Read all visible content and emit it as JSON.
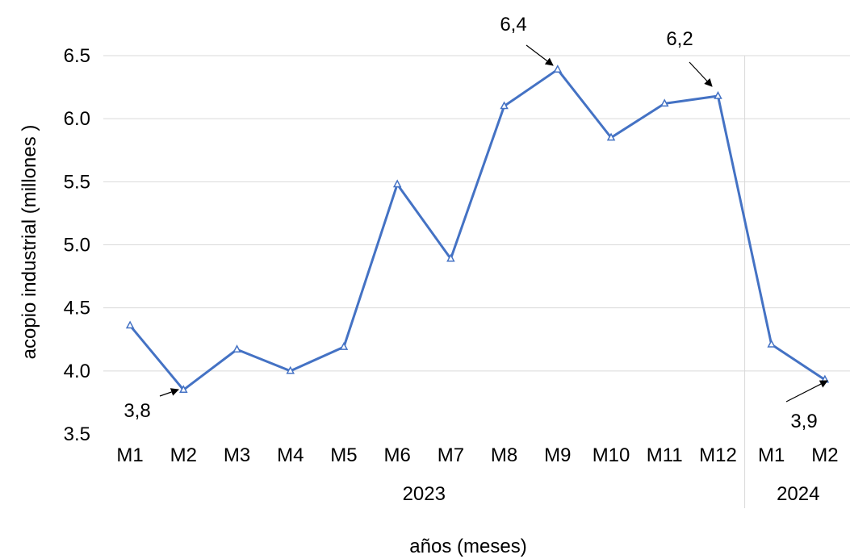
{
  "chart_data": {
    "type": "line",
    "xlabel": "años (meses)",
    "ylabel": "acopio industrial (millones )",
    "ylim": [
      3.5,
      6.5
    ],
    "yticks": [
      "3.5",
      "4.0",
      "4.5",
      "5.0",
      "5.5",
      "6.0",
      "6.5"
    ],
    "categories": [
      "M1",
      "M2",
      "M3",
      "M4",
      "M5",
      "M6",
      "M7",
      "M8",
      "M9",
      "M10",
      "M11",
      "M12",
      "M1",
      "M2"
    ],
    "groups": [
      {
        "label": "2023",
        "start": 0,
        "end": 11
      },
      {
        "label": "2024",
        "start": 12,
        "end": 13
      }
    ],
    "values": [
      4.36,
      3.85,
      4.17,
      4.0,
      4.19,
      5.48,
      4.89,
      6.1,
      6.39,
      5.85,
      6.12,
      6.18,
      4.21,
      3.93
    ],
    "grid": true,
    "line_color": "#4472C4",
    "marker": "triangle",
    "annotations": [
      {
        "text": "3,8",
        "index": 1
      },
      {
        "text": "6,4",
        "index": 8
      },
      {
        "text": "6,2",
        "index": 11
      },
      {
        "text": "3,9",
        "index": 13
      }
    ]
  }
}
